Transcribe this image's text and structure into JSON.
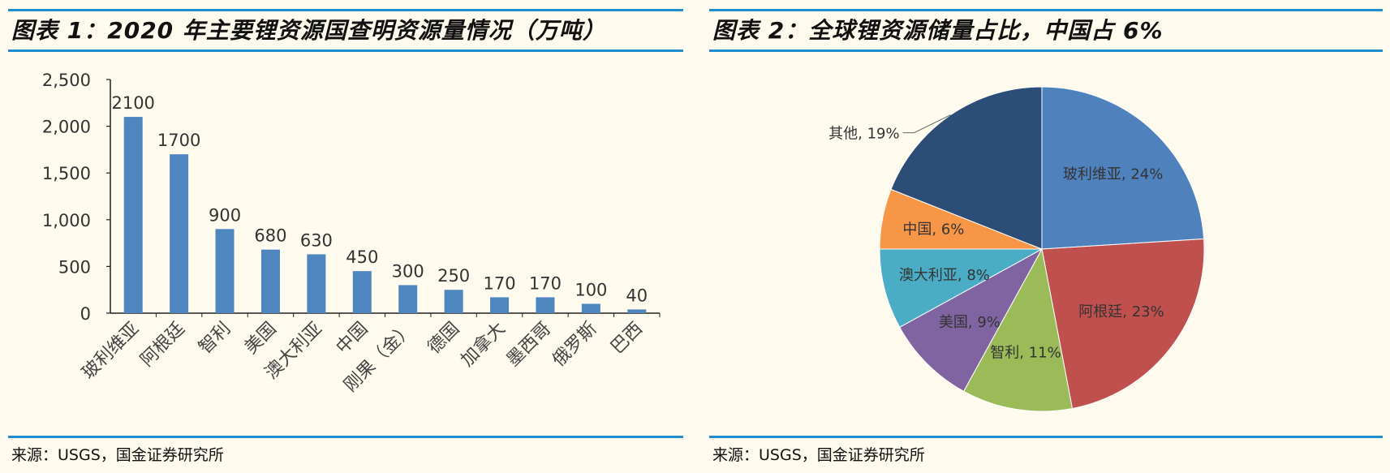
{
  "panel1": {
    "title": "图表 1：2020 年主要锂资源国查明资源量情况（万吨）",
    "source": "来源：USGS，国金证券研究所"
  },
  "panel2": {
    "title": "图表 2：全球锂资源储量占比，中国占 6%",
    "source": "来源：USGS，国金证券研究所"
  },
  "chart_data": [
    {
      "type": "bar",
      "title": "2020 年主要锂资源国查明资源量情况（万吨）",
      "categories": [
        "玻利维亚",
        "阿根廷",
        "智利",
        "美国",
        "澳大利亚",
        "中国",
        "刚果（金）",
        "德国",
        "加拿大",
        "墨西哥",
        "俄罗斯",
        "巴西"
      ],
      "values": [
        2100,
        1700,
        900,
        680,
        630,
        450,
        300,
        250,
        170,
        170,
        100,
        40
      ],
      "data_labels": [
        "2100",
        "1700",
        "900",
        "680",
        "630",
        "450",
        "300",
        "250",
        "170",
        "170",
        "100",
        "40"
      ],
      "yticks": [
        "0",
        "500",
        "1,000",
        "1,500",
        "2,000",
        "2,500"
      ],
      "ytick_values": [
        0,
        500,
        1000,
        1500,
        2000,
        2500
      ],
      "ylim": [
        0,
        2500
      ],
      "grid": false,
      "bar_color": "#4f86c0"
    },
    {
      "type": "pie",
      "title": "全球锂资源储量占比，中国占 6%",
      "slices": [
        {
          "label": "玻利维亚, 24%",
          "value": 24,
          "color": "#4f81bd"
        },
        {
          "label": "阿根廷, 23%",
          "value": 23,
          "color": "#c0504d"
        },
        {
          "label": "智利, 11%",
          "value": 11,
          "color": "#9bbb59"
        },
        {
          "label": "美国, 9%",
          "value": 9,
          "color": "#8064a2"
        },
        {
          "label": "澳大利亚, 8%",
          "value": 8,
          "color": "#4bacc6"
        },
        {
          "label": "中国, 6%",
          "value": 6,
          "color": "#f79646"
        },
        {
          "label": "其他, 19%",
          "value": 19,
          "color": "#2c4d75"
        }
      ]
    }
  ]
}
